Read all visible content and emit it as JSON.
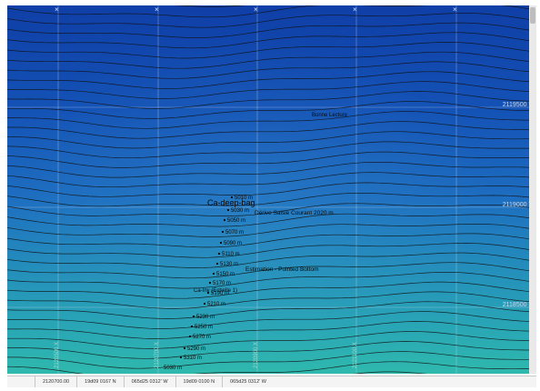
{
  "map": {
    "annotations": [
      {
        "id": "ann-top",
        "text": "Bonne Lecture"
      },
      {
        "id": "ann-mid",
        "text": "Dérive Saisie Courant 2020 m"
      },
      {
        "id": "ann-cluster",
        "text": "Ca-deep-bag"
      },
      {
        "id": "ann-estimate",
        "text": "Estimation - Pointed Bottom"
      },
      {
        "id": "ann-low",
        "text": "Ca-Inv (Echelle 1)"
      }
    ],
    "depth_labels": [
      "5010 m",
      "5030 m",
      "5050 m",
      "5070 m",
      "5090 m",
      "5110 m",
      "5130 m",
      "5150 m",
      "5170 m",
      "5190 m",
      "5210 m",
      "5230 m",
      "5250 m",
      "5270 m",
      "5290 m",
      "5310 m"
    ],
    "depth_label_low": "5030 m",
    "y_grid_labels": [
      "2119500 Y",
      "2119000 Y",
      "2118500 Y"
    ],
    "x_grid_labels": [
      "2120500 X",
      "2120700 X",
      "2120900 X",
      "2121100 X"
    ],
    "grid_marker": "×"
  },
  "status": {
    "coord_xy": "2120700.00",
    "lat_dms": "19d09 0167 N",
    "lon_dms": "065d25 0312' W",
    "lat_dms_2": "19d09 0100 N",
    "lon_dms_2": "065d25 0312' W"
  },
  "colors": {
    "water_deep": "#0f3fa7",
    "water_shallow": "#2fb9ad",
    "contour": "#111111",
    "grid": "#d0dcf0"
  }
}
